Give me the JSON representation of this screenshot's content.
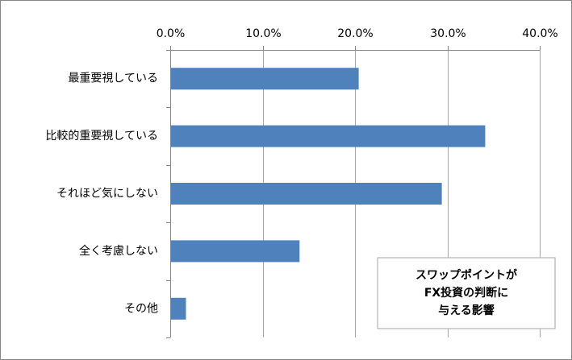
{
  "chart_data": {
    "type": "bar",
    "orientation": "horizontal",
    "categories": [
      "最重要視している",
      "比較的重要視している",
      "それほど気にしない",
      "全く考慮しない",
      "その他"
    ],
    "values": [
      20.4,
      34.1,
      29.4,
      14.0,
      1.7
    ],
    "xlim": [
      0,
      40
    ],
    "x_ticks": [
      "0.0%",
      "10.0%",
      "20.0%",
      "30.0%",
      "40.0%"
    ],
    "x_axis_position": "top",
    "grid": true,
    "bar_color": "#4f81bd",
    "grid_color": "#a6a6a6",
    "annotation": {
      "lines": [
        "スワップポイントが",
        "FX投資の判断に",
        "与える影響"
      ],
      "position": "bottom-right"
    },
    "title": "",
    "xlabel": "",
    "ylabel": ""
  }
}
